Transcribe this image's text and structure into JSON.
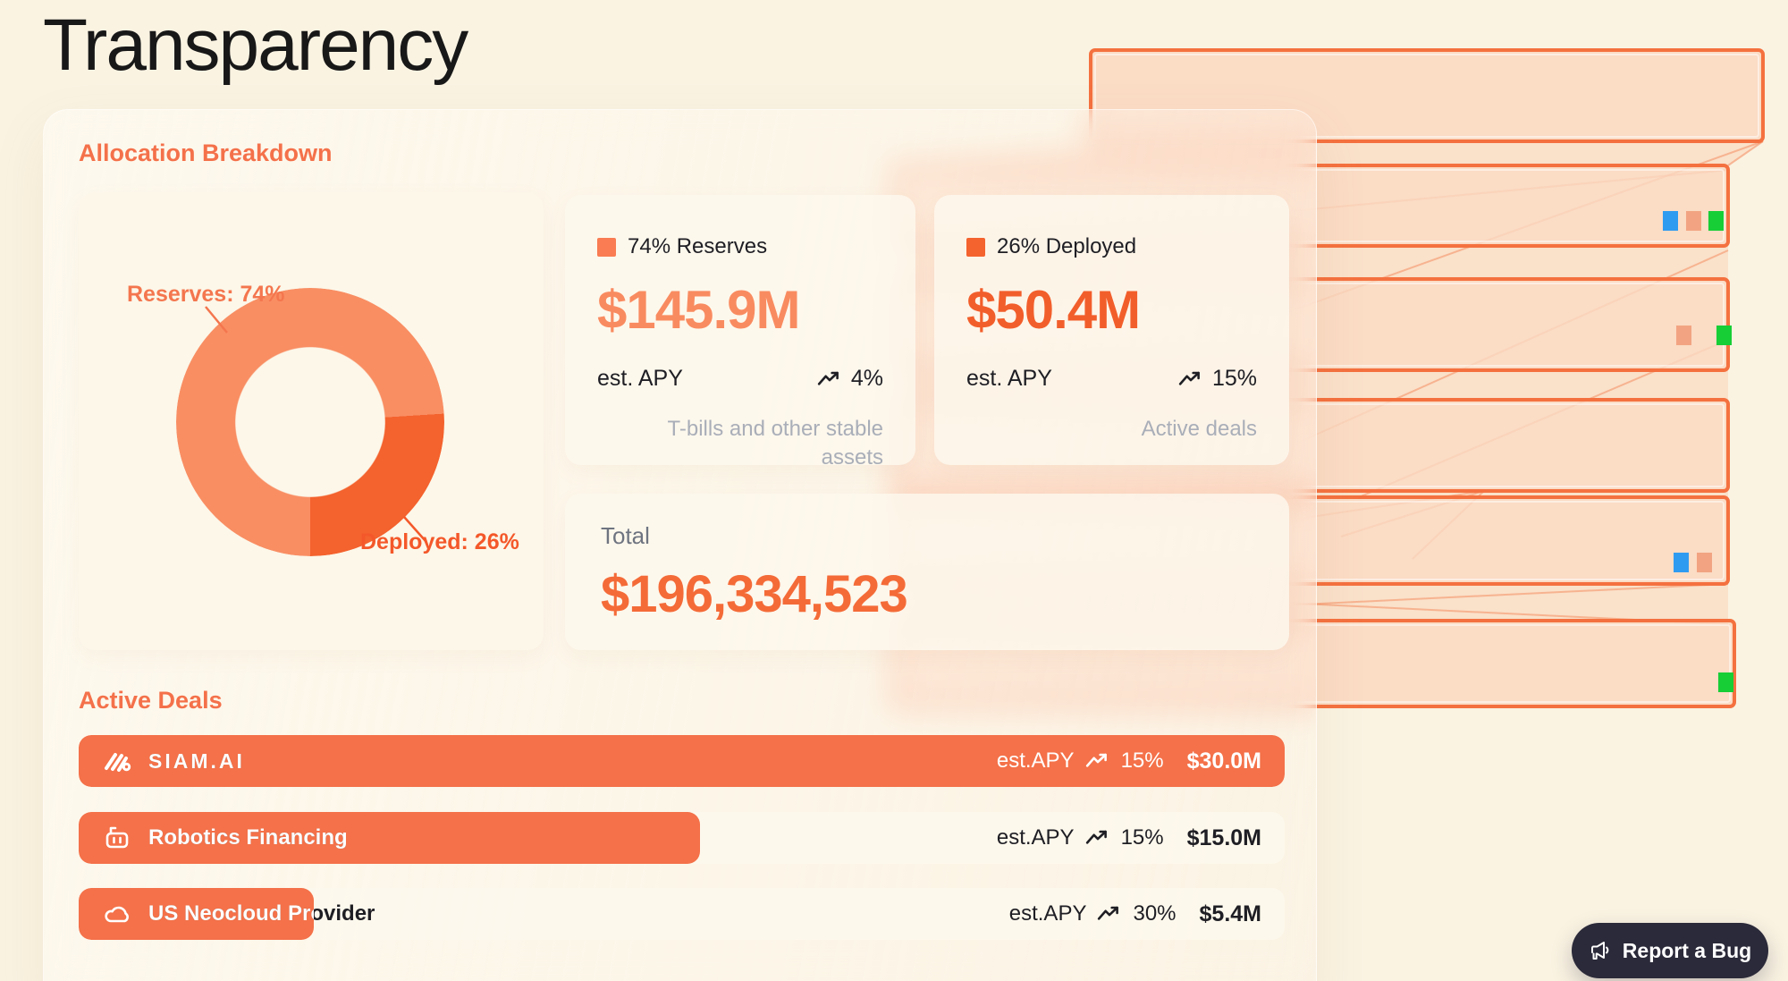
{
  "page": {
    "title": "Transparency"
  },
  "chart_data": {
    "type": "pie",
    "title": "Allocation Breakdown",
    "categories": [
      "Reserves",
      "Deployed"
    ],
    "values": [
      74,
      26
    ],
    "unit": "%",
    "labels": [
      "Reserves: 74%",
      "Deployed: 26%"
    ],
    "colors": [
      "#F98E63",
      "#F4622D"
    ],
    "start_angle_deg": 180,
    "inner_radius_pct": 56,
    "legend_position": "callout-labels"
  },
  "allocation": {
    "heading": "Allocation Breakdown",
    "reserves_card": {
      "legend": "74% Reserves",
      "amount": "$145.9M",
      "apy_label": "est. APY",
      "apy_value": "4%",
      "note": "T-bills and other stable assets"
    },
    "deployed_card": {
      "legend": "26% Deployed",
      "amount": "$50.4M",
      "apy_label": "est. APY",
      "apy_value": "15%",
      "note": "Active deals"
    },
    "total_card": {
      "label": "Total",
      "amount": "$196,334,523"
    }
  },
  "deals": {
    "heading": "Active Deals",
    "apy_prefix": "est.APY",
    "rows": [
      {
        "name": "SIAM.AI",
        "icon": "siam-ai-logo",
        "apy": "15%",
        "amount": "$30.0M",
        "fill_pct": 100
      },
      {
        "name": "Robotics Financing",
        "icon": "robot-icon",
        "apy": "15%",
        "amount": "$15.0M",
        "fill_pct": 51.5
      },
      {
        "name": "US Neocloud Provider",
        "icon": "cloud-icon",
        "apy": "30%",
        "amount": "$5.4M",
        "fill_pct": 19.5
      }
    ]
  },
  "report_button": {
    "label": "Report a Bug"
  },
  "colors": {
    "background": "#FAF3E2",
    "accent_orange": "#F4714A",
    "reserves": "#F98E63",
    "deployed": "#F4622D",
    "deal_bar": "#F47149",
    "text_dark": "#1E1E24",
    "text_gray": "#A9AEB8",
    "total_label_gray": "#6E7480",
    "rack_border": "#F4713F",
    "rack_fill": "#FAD7C0",
    "led_blue": "#2F9BF0",
    "led_salmon": "#F2A482",
    "led_green": "#17CE36",
    "button_bg": "#2B2A3A"
  }
}
